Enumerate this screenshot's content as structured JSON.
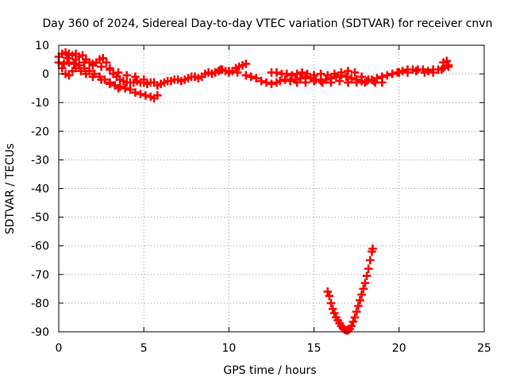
{
  "chart_data": {
    "type": "scatter",
    "title": "Day 360 of 2024, Sidereal Day-to-day VTEC variation (SDTVAR) for receiver cnvn",
    "xlabel": "GPS time / hours",
    "ylabel": "SDTVAR / TECUs",
    "xlim": [
      0,
      25
    ],
    "ylim": [
      -90,
      10
    ],
    "x_ticks": [
      0,
      5,
      10,
      15,
      20,
      25
    ],
    "y_ticks": [
      10,
      0,
      -10,
      -20,
      -30,
      -40,
      -50,
      -60,
      -70,
      -80,
      -90
    ],
    "grid": true,
    "marker_color": "#ff0000",
    "marker": "plus",
    "series": [
      {
        "name": "main-band",
        "points": [
          [
            0.0,
            6
          ],
          [
            0.2,
            7
          ],
          [
            0.4,
            7.5
          ],
          [
            0.6,
            7
          ],
          [
            0.8,
            6.5
          ],
          [
            1.0,
            7
          ],
          [
            1.2,
            6
          ],
          [
            1.4,
            6.5
          ],
          [
            1.6,
            5
          ],
          [
            1.8,
            4
          ],
          [
            2.0,
            3
          ],
          [
            2.2,
            4
          ],
          [
            2.4,
            5
          ],
          [
            2.6,
            5.5
          ],
          [
            2.8,
            4
          ],
          [
            3.0,
            2
          ],
          [
            3.2,
            0
          ],
          [
            3.4,
            -1
          ],
          [
            3.6,
            -2
          ],
          [
            3.8,
            -2.5
          ],
          [
            4.0,
            -3
          ],
          [
            4.2,
            -3
          ],
          [
            4.4,
            -3
          ],
          [
            4.6,
            -2.5
          ],
          [
            4.8,
            -3
          ],
          [
            5.0,
            -3
          ],
          [
            5.2,
            -3.5
          ],
          [
            5.4,
            -3
          ],
          [
            5.6,
            -3
          ],
          [
            5.8,
            -4
          ],
          [
            6.0,
            -3.5
          ],
          [
            6.2,
            -3
          ],
          [
            6.4,
            -2.5
          ],
          [
            6.6,
            -2.5
          ],
          [
            6.8,
            -2
          ],
          [
            7.0,
            -2
          ],
          [
            7.2,
            -2.5
          ],
          [
            7.4,
            -2
          ],
          [
            7.6,
            -1.5
          ],
          [
            7.8,
            -1
          ],
          [
            8.0,
            -1
          ],
          [
            8.2,
            -1.5
          ],
          [
            8.4,
            -1
          ],
          [
            8.6,
            0
          ],
          [
            8.8,
            0.5
          ],
          [
            9.0,
            0
          ],
          [
            9.2,
            0.5
          ],
          [
            9.4,
            1
          ],
          [
            9.6,
            1.5
          ],
          [
            9.8,
            1
          ],
          [
            10.0,
            0.5
          ],
          [
            10.2,
            1
          ],
          [
            10.4,
            2
          ],
          [
            10.6,
            2.5
          ],
          [
            10.8,
            3
          ],
          [
            11.0,
            3.5
          ],
          [
            0.0,
            4
          ],
          [
            0.3,
            3.5
          ],
          [
            0.6,
            4
          ],
          [
            0.9,
            3.5
          ],
          [
            1.2,
            3
          ],
          [
            1.5,
            2
          ],
          [
            1.8,
            1
          ],
          [
            2.1,
            0
          ],
          [
            2.4,
            -1
          ],
          [
            2.7,
            -2
          ],
          [
            3.0,
            -3
          ],
          [
            3.3,
            -4
          ],
          [
            3.6,
            -4.5
          ],
          [
            3.9,
            -5
          ],
          [
            4.2,
            -5.5
          ],
          [
            4.5,
            -6.5
          ],
          [
            4.8,
            -7
          ],
          [
            5.1,
            -7.5
          ],
          [
            5.4,
            -8
          ],
          [
            5.6,
            -8.5
          ],
          [
            5.8,
            -7.5
          ],
          [
            0.2,
            2
          ],
          [
            0.4,
            0
          ],
          [
            0.6,
            -0.5
          ],
          [
            0.8,
            1
          ],
          [
            1.0,
            2
          ],
          [
            1.3,
            1
          ],
          [
            1.6,
            0
          ],
          [
            2.0,
            -1
          ],
          [
            2.5,
            -2
          ],
          [
            3.0,
            -3.5
          ],
          [
            3.5,
            -5
          ],
          [
            0.5,
            5.5
          ],
          [
            1.0,
            5
          ],
          [
            1.5,
            4
          ],
          [
            2.0,
            3.5
          ],
          [
            2.5,
            2.5
          ],
          [
            3.0,
            1.5
          ],
          [
            3.5,
            0.5
          ],
          [
            4.0,
            -0.5
          ],
          [
            4.5,
            -1
          ],
          [
            5.0,
            -2
          ],
          [
            9.5,
            1.5
          ],
          [
            10.0,
            1
          ],
          [
            10.5,
            0.5
          ],
          [
            11.0,
            -0.5
          ],
          [
            11.3,
            -1
          ],
          [
            11.6,
            -1.5
          ],
          [
            11.9,
            -2.5
          ],
          [
            12.2,
            -3
          ],
          [
            12.5,
            -3.5
          ],
          [
            12.8,
            -3
          ],
          [
            13.0,
            -2.5
          ],
          [
            13.3,
            -2
          ],
          [
            13.6,
            -2.5
          ],
          [
            13.9,
            -2
          ],
          [
            14.2,
            -1.5
          ],
          [
            14.5,
            -1
          ],
          [
            14.8,
            -1.5
          ],
          [
            15.1,
            -2
          ],
          [
            15.4,
            -2.5
          ],
          [
            15.7,
            -2
          ],
          [
            16.0,
            -1.5
          ],
          [
            16.3,
            -1
          ],
          [
            16.6,
            -0.5
          ],
          [
            16.9,
            -1
          ],
          [
            17.2,
            -1.5
          ],
          [
            17.5,
            -2
          ],
          [
            17.8,
            -2.5
          ],
          [
            18.1,
            -2.5
          ],
          [
            18.4,
            -2
          ],
          [
            18.7,
            -1.5
          ],
          [
            19.0,
            -1
          ],
          [
            19.3,
            -0.5
          ],
          [
            19.6,
            0
          ],
          [
            19.9,
            0.5
          ],
          [
            20.2,
            1
          ],
          [
            20.5,
            1.5
          ],
          [
            20.8,
            1.5
          ],
          [
            21.1,
            1.5
          ],
          [
            21.4,
            1.5
          ],
          [
            21.7,
            1
          ],
          [
            22.0,
            1.5
          ],
          [
            22.3,
            1.5
          ],
          [
            22.6,
            2
          ],
          [
            22.9,
            3
          ],
          [
            12.5,
            0.5
          ],
          [
            12.8,
            0.5
          ],
          [
            13.1,
            0
          ],
          [
            13.4,
            0
          ],
          [
            13.7,
            -0.5
          ],
          [
            14.0,
            0
          ],
          [
            14.3,
            0.5
          ],
          [
            14.6,
            0
          ],
          [
            15.0,
            -0.5
          ],
          [
            15.4,
            0
          ],
          [
            15.8,
            -0.5
          ],
          [
            16.2,
            0
          ],
          [
            16.6,
            0.5
          ],
          [
            17.0,
            1
          ],
          [
            17.4,
            0.5
          ],
          [
            17.8,
            -1
          ],
          [
            18.2,
            -2
          ],
          [
            18.6,
            -3
          ],
          [
            19.0,
            -3
          ],
          [
            14.0,
            -3
          ],
          [
            14.5,
            -3
          ],
          [
            15.0,
            -2.5
          ],
          [
            15.5,
            -3
          ],
          [
            16.0,
            -3
          ],
          [
            16.5,
            -2.5
          ],
          [
            17.0,
            -3
          ],
          [
            17.5,
            -3
          ],
          [
            18.0,
            -3
          ],
          [
            18.5,
            -2.5
          ],
          [
            20.0,
            0.5
          ],
          [
            20.5,
            0.5
          ],
          [
            21.0,
            1
          ],
          [
            21.5,
            0.5
          ],
          [
            22.0,
            0.5
          ],
          [
            22.5,
            1.5
          ],
          [
            22.9,
            2.5
          ],
          [
            22.8,
            4.5
          ],
          [
            22.6,
            4
          ]
        ]
      },
      {
        "name": "dip-curve",
        "points": [
          [
            15.8,
            -76
          ],
          [
            15.9,
            -77.5
          ],
          [
            16.0,
            -80
          ],
          [
            16.1,
            -82
          ],
          [
            16.2,
            -83.5
          ],
          [
            16.3,
            -85
          ],
          [
            16.4,
            -86
          ],
          [
            16.5,
            -87
          ],
          [
            16.6,
            -88
          ],
          [
            16.7,
            -88.8
          ],
          [
            16.8,
            -89.3
          ],
          [
            16.9,
            -89.5
          ],
          [
            17.0,
            -89.5
          ],
          [
            17.1,
            -89
          ],
          [
            17.2,
            -88
          ],
          [
            17.3,
            -86.5
          ],
          [
            17.4,
            -85
          ],
          [
            17.5,
            -83
          ],
          [
            17.6,
            -81
          ],
          [
            17.7,
            -79
          ],
          [
            17.8,
            -77
          ],
          [
            17.9,
            -75
          ],
          [
            18.0,
            -73
          ],
          [
            18.1,
            -70.5
          ],
          [
            18.2,
            -68
          ],
          [
            18.3,
            -65
          ],
          [
            18.4,
            -62
          ],
          [
            18.45,
            -61
          ]
        ]
      }
    ]
  }
}
